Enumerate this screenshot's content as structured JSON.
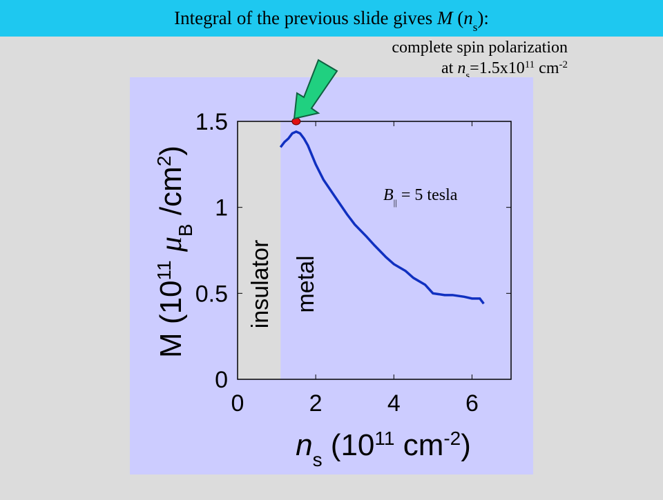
{
  "chart_data": {
    "type": "line",
    "title": [
      "Integral of the previous slide gives ",
      "M",
      " (",
      "n",
      "s",
      "):"
    ],
    "annotation": [
      "complete spin polarization",
      "at ",
      "n",
      "s",
      "=1.5x10",
      "11",
      " cm",
      "-2"
    ],
    "field_label": [
      "B",
      "||",
      " = 5 tesla"
    ],
    "region_labels": [
      "insulator",
      "metal"
    ],
    "xlabel": [
      "n",
      "s",
      " (10",
      "11",
      " cm",
      "-2",
      ")"
    ],
    "ylabel": [
      "M (10",
      "11",
      " ",
      "μ",
      "B",
      " /cm",
      "2",
      ")"
    ],
    "x": [
      1.1,
      1.2,
      1.3,
      1.4,
      1.5,
      1.6,
      1.7,
      1.8,
      2.0,
      2.2,
      2.5,
      2.8,
      3.0,
      3.3,
      3.5,
      3.8,
      4.0,
      4.3,
      4.5,
      4.8,
      5.0,
      5.3,
      5.5,
      5.8,
      6.0,
      6.2,
      6.3
    ],
    "series": [
      {
        "color": "#1030c0",
        "values": [
          1.35,
          1.38,
          1.4,
          1.43,
          1.44,
          1.43,
          1.4,
          1.36,
          1.25,
          1.16,
          1.06,
          0.96,
          0.9,
          0.83,
          0.78,
          0.71,
          0.67,
          0.63,
          0.59,
          0.55,
          0.5,
          0.49,
          0.49,
          0.48,
          0.47,
          0.47,
          0.44
        ]
      }
    ],
    "highlight": {
      "x": 1.5,
      "y": 1.5,
      "color": "#e01010"
    },
    "insulator_edge": 1.1,
    "xlim": [
      0,
      7
    ],
    "xticks": [
      0,
      2,
      4,
      6
    ],
    "ylim": [
      0,
      1.5
    ],
    "yticks": [
      0,
      0.5,
      1,
      1.5
    ]
  }
}
